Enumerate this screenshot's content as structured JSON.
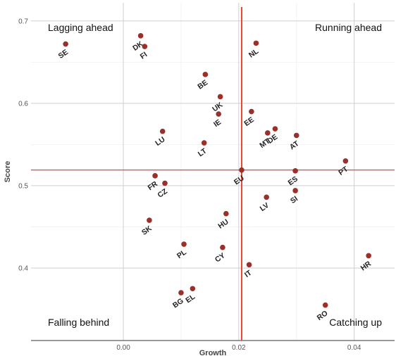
{
  "chart_data": {
    "type": "scatter",
    "xlabel": "Growth",
    "ylabel": "Score",
    "xlim": [
      -0.016,
      0.047
    ],
    "ylim": [
      0.312,
      0.722
    ],
    "x_ticks": [
      {
        "value": 0.0,
        "label": "0.00"
      },
      {
        "value": 0.02,
        "label": "0.02"
      },
      {
        "value": 0.04,
        "label": "0.04"
      }
    ],
    "y_ticks": [
      {
        "value": 0.4,
        "label": "0.4"
      },
      {
        "value": 0.5,
        "label": "0.5"
      },
      {
        "value": 0.6,
        "label": "0.6"
      },
      {
        "value": 0.7,
        "label": "0.7"
      }
    ],
    "reference_lines": {
      "x": 0.0205,
      "y": 0.519,
      "color": "#e8452c"
    },
    "grid": true,
    "point_color": "#9b2f2a",
    "quadrant_labels": {
      "top_left": "Lagging ahead",
      "top_right": "Running ahead",
      "bottom_left": "Falling behind",
      "bottom_right": "Catching up"
    },
    "points": [
      {
        "label": "SE",
        "x": -0.01,
        "y": 0.672
      },
      {
        "label": "DK",
        "x": 0.003,
        "y": 0.682
      },
      {
        "label": "FI",
        "x": 0.0037,
        "y": 0.669
      },
      {
        "label": "NL",
        "x": 0.023,
        "y": 0.673
      },
      {
        "label": "BE",
        "x": 0.0142,
        "y": 0.635
      },
      {
        "label": "UK",
        "x": 0.0168,
        "y": 0.608
      },
      {
        "label": "IE",
        "x": 0.0165,
        "y": 0.587
      },
      {
        "label": "EE",
        "x": 0.0222,
        "y": 0.59
      },
      {
        "label": "DE",
        "x": 0.0263,
        "y": 0.569
      },
      {
        "label": "MT",
        "x": 0.025,
        "y": 0.564
      },
      {
        "label": "AT",
        "x": 0.03,
        "y": 0.561
      },
      {
        "label": "LU",
        "x": 0.0068,
        "y": 0.566
      },
      {
        "label": "LT",
        "x": 0.014,
        "y": 0.552
      },
      {
        "label": "PT",
        "x": 0.0385,
        "y": 0.53
      },
      {
        "label": "EU",
        "x": 0.0205,
        "y": 0.519
      },
      {
        "label": "ES",
        "x": 0.0298,
        "y": 0.518
      },
      {
        "label": "FR",
        "x": 0.0055,
        "y": 0.512
      },
      {
        "label": "CZ",
        "x": 0.0072,
        "y": 0.503
      },
      {
        "label": "SI",
        "x": 0.0298,
        "y": 0.494
      },
      {
        "label": "LV",
        "x": 0.0248,
        "y": 0.486
      },
      {
        "label": "HU",
        "x": 0.0178,
        "y": 0.466
      },
      {
        "label": "SK",
        "x": 0.0045,
        "y": 0.458
      },
      {
        "label": "PL",
        "x": 0.0105,
        "y": 0.429
      },
      {
        "label": "CY",
        "x": 0.0172,
        "y": 0.425
      },
      {
        "label": "HR",
        "x": 0.0425,
        "y": 0.415
      },
      {
        "label": "IT",
        "x": 0.0218,
        "y": 0.404
      },
      {
        "label": "EL",
        "x": 0.012,
        "y": 0.375
      },
      {
        "label": "BG",
        "x": 0.01,
        "y": 0.37
      },
      {
        "label": "RO",
        "x": 0.035,
        "y": 0.355
      }
    ]
  }
}
